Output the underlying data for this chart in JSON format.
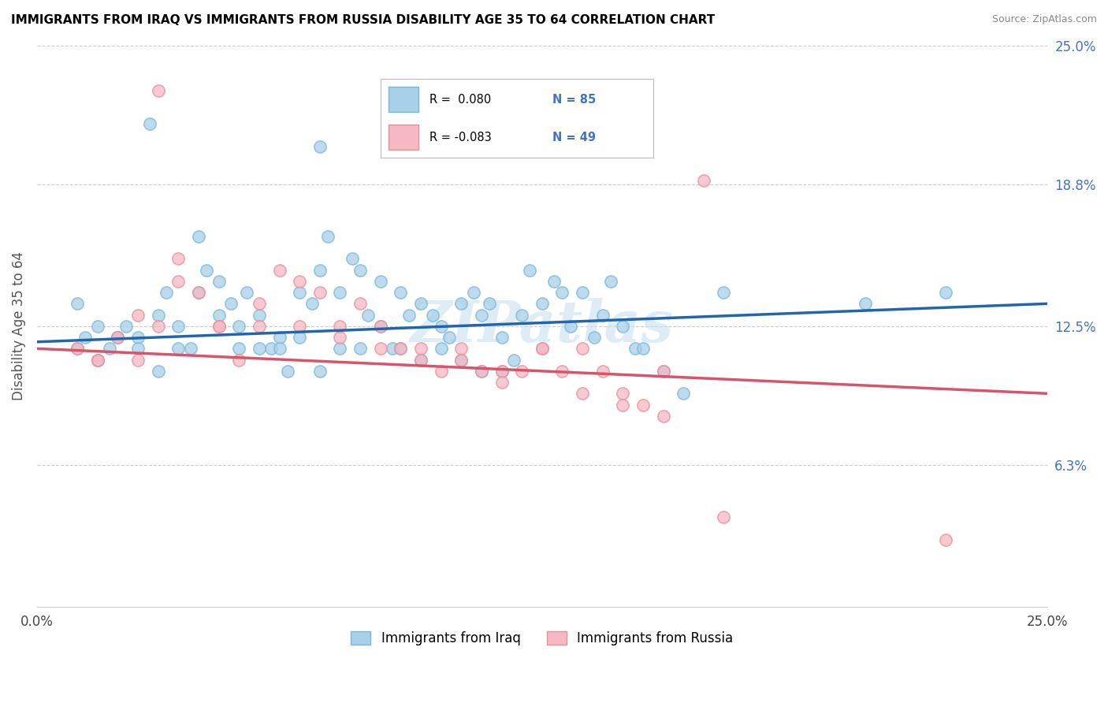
{
  "title": "IMMIGRANTS FROM IRAQ VS IMMIGRANTS FROM RUSSIA DISABILITY AGE 35 TO 64 CORRELATION CHART",
  "source": "Source: ZipAtlas.com",
  "ylabel": "Disability Age 35 to 64",
  "xmin": 0.0,
  "xmax": 25.0,
  "ymin": 0.0,
  "ymax": 25.0,
  "yticks_right": [
    6.3,
    12.5,
    18.8,
    25.0
  ],
  "ytick_labels_right": [
    "6.3%",
    "12.5%",
    "18.8%",
    "25.0%"
  ],
  "iraq_color": "#a8d0e8",
  "russia_color": "#f5b8c4",
  "iraq_edge_color": "#7ab8d8",
  "russia_edge_color": "#e8909a",
  "iraq_line_color": "#2166ac",
  "russia_line_color": "#d9546a",
  "iraq_R": 0.08,
  "iraq_N": 85,
  "russia_R": -0.083,
  "russia_N": 49,
  "watermark": "ZIPatlas",
  "legend_iraq": "Immigrants from Iraq",
  "legend_russia": "Immigrants from Russia",
  "iraq_line_x0": 0.0,
  "iraq_line_y0": 11.8,
  "iraq_line_x1": 25.0,
  "iraq_line_y1": 13.5,
  "russia_line_x0": 0.0,
  "russia_line_y0": 11.5,
  "russia_line_x1": 25.0,
  "russia_line_y1": 9.5,
  "iraq_points_x": [
    1.0,
    1.2,
    1.5,
    1.8,
    2.0,
    2.2,
    2.5,
    2.8,
    3.0,
    3.2,
    3.5,
    3.8,
    4.0,
    4.2,
    4.5,
    4.8,
    5.0,
    5.2,
    5.5,
    5.8,
    6.0,
    6.2,
    6.5,
    6.8,
    7.0,
    7.2,
    7.5,
    7.8,
    8.0,
    8.2,
    8.5,
    8.8,
    9.0,
    9.2,
    9.5,
    9.8,
    10.0,
    10.2,
    10.5,
    10.8,
    11.0,
    11.2,
    11.5,
    11.8,
    12.0,
    12.2,
    12.5,
    12.8,
    13.0,
    13.2,
    13.5,
    13.8,
    14.0,
    14.2,
    14.5,
    14.8,
    15.0,
    15.5,
    16.0,
    17.0,
    1.0,
    1.5,
    2.0,
    2.5,
    3.0,
    3.5,
    4.0,
    4.5,
    5.0,
    5.5,
    6.0,
    6.5,
    7.0,
    7.5,
    8.0,
    8.5,
    9.0,
    9.5,
    10.0,
    10.5,
    11.0,
    11.5,
    20.5,
    22.5,
    7.0
  ],
  "iraq_points_y": [
    13.5,
    12.0,
    12.5,
    11.5,
    12.0,
    12.5,
    12.0,
    21.5,
    13.0,
    14.0,
    12.5,
    11.5,
    16.5,
    15.0,
    14.5,
    13.5,
    11.5,
    14.0,
    13.0,
    11.5,
    12.0,
    10.5,
    14.0,
    13.5,
    15.0,
    16.5,
    14.0,
    15.5,
    15.0,
    13.0,
    14.5,
    11.5,
    14.0,
    13.0,
    13.5,
    13.0,
    12.5,
    12.0,
    13.5,
    14.0,
    13.0,
    13.5,
    12.0,
    11.0,
    13.0,
    15.0,
    13.5,
    14.5,
    14.0,
    12.5,
    14.0,
    12.0,
    13.0,
    14.5,
    12.5,
    11.5,
    11.5,
    10.5,
    9.5,
    14.0,
    11.5,
    11.0,
    12.0,
    11.5,
    10.5,
    11.5,
    14.0,
    13.0,
    12.5,
    11.5,
    11.5,
    12.0,
    10.5,
    11.5,
    11.5,
    12.5,
    11.5,
    11.0,
    11.5,
    11.0,
    10.5,
    10.5,
    13.5,
    14.0,
    20.5
  ],
  "russia_points_x": [
    1.0,
    1.5,
    2.0,
    2.5,
    3.0,
    3.5,
    4.0,
    4.5,
    5.0,
    5.5,
    6.0,
    6.5,
    7.0,
    7.5,
    8.0,
    8.5,
    9.0,
    9.5,
    10.0,
    10.5,
    11.0,
    11.5,
    12.0,
    12.5,
    13.0,
    13.5,
    14.0,
    14.5,
    15.0,
    15.5,
    1.5,
    2.5,
    3.5,
    4.5,
    5.5,
    6.5,
    7.5,
    8.5,
    9.5,
    10.5,
    11.5,
    12.5,
    13.5,
    14.5,
    15.5,
    16.5,
    17.0,
    22.5,
    3.0
  ],
  "russia_points_y": [
    11.5,
    11.0,
    12.0,
    13.0,
    12.5,
    15.5,
    14.0,
    12.5,
    11.0,
    13.5,
    15.0,
    14.5,
    14.0,
    12.0,
    13.5,
    12.5,
    11.5,
    11.5,
    10.5,
    11.5,
    10.5,
    10.5,
    10.5,
    11.5,
    10.5,
    11.5,
    10.5,
    9.5,
    9.0,
    10.5,
    11.0,
    11.0,
    14.5,
    12.5,
    12.5,
    12.5,
    12.5,
    11.5,
    11.0,
    11.0,
    10.0,
    11.5,
    9.5,
    9.0,
    8.5,
    19.0,
    4.0,
    3.0,
    23.0
  ]
}
